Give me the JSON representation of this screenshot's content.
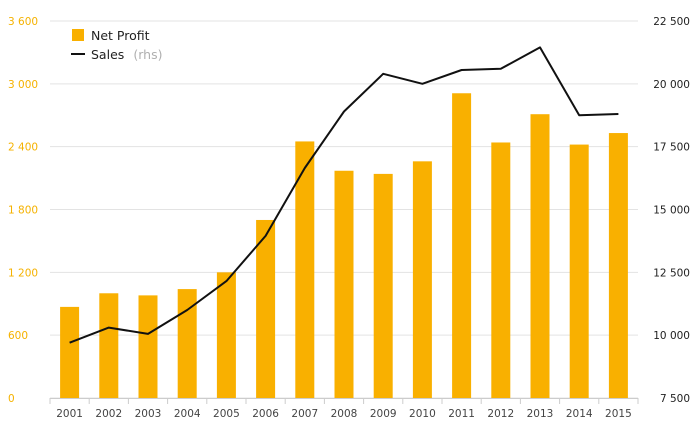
{
  "chart_data": {
    "type": "bar+line",
    "categories": [
      "2001",
      "2002",
      "2003",
      "2004",
      "2005",
      "2006",
      "2007",
      "2008",
      "2009",
      "2010",
      "2011",
      "2012",
      "2013",
      "2014",
      "2015"
    ],
    "series": [
      {
        "name": "Net Profit",
        "type": "bar",
        "axis": "left",
        "values": [
          870,
          1000,
          980,
          1040,
          1200,
          1700,
          2450,
          2170,
          2140,
          2260,
          2910,
          2440,
          2710,
          2420,
          2530
        ]
      },
      {
        "name": "Sales",
        "type": "line",
        "axis": "right",
        "values": [
          9700,
          10300,
          10050,
          11000,
          12150,
          13950,
          16650,
          18900,
          20400,
          20000,
          20550,
          20600,
          21450,
          18750,
          18800
        ]
      }
    ],
    "legend": {
      "position": "top-left",
      "items": [
        {
          "label": "Net Profit",
          "suffix": ""
        },
        {
          "label": "Sales",
          "suffix": "(rhs)"
        }
      ]
    },
    "y_left": {
      "min": 0,
      "max": 3600,
      "ticks": [
        0,
        600,
        1200,
        1800,
        2400,
        3000,
        3600
      ],
      "tick_labels": [
        "0",
        "600",
        "1 200",
        "1 800",
        "2 400",
        "3 000",
        "3 600"
      ]
    },
    "y_right": {
      "min": 7500,
      "max": 22500,
      "ticks": [
        7500,
        10000,
        12500,
        15000,
        17500,
        20000,
        22500
      ],
      "tick_labels": [
        "7 500",
        "10 000",
        "12 500",
        "15 000",
        "17 500",
        "20 000",
        "22 500"
      ]
    },
    "grid": true,
    "colors": {
      "bar": "#f9b000",
      "line": "#111111",
      "grid": "#e3e3e3",
      "left_axis_text": "#f5b200"
    }
  }
}
